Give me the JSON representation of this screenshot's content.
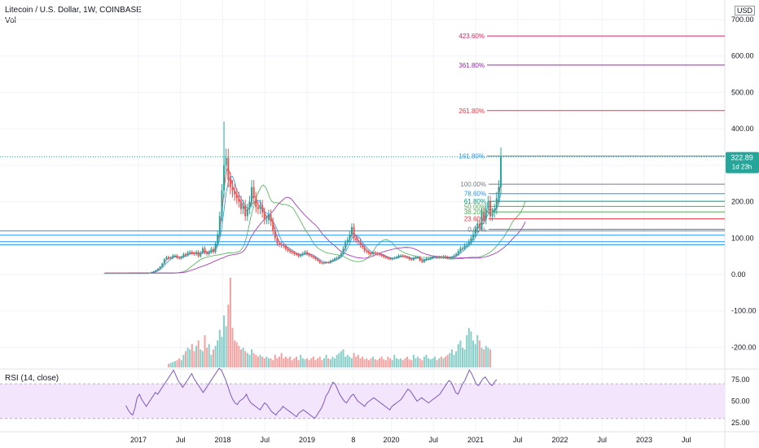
{
  "header": {
    "title": "Litecoin / U.S. Dollar, 1W, COINBASE",
    "vol_label": "Vol"
  },
  "rsi_label": "RSI (14, close)",
  "currency_label": "USD",
  "price_badge": {
    "value": "322.89",
    "countdown": "1d 23h",
    "color": "#26a69a"
  },
  "colors": {
    "up": "#26a69a",
    "down": "#ef5350",
    "rsi": "#7e57c2",
    "rsi_band": "#f3e5fc",
    "hline": "#2196f3"
  },
  "chart_data": {
    "type": "candlestick",
    "price_axis": {
      "min": -200,
      "max": 700,
      "ticks": [
        700,
        600,
        500,
        400,
        300,
        200,
        100,
        0,
        -100,
        -200
      ],
      "tick_labels": [
        "700.00",
        "600.00",
        "500.00",
        "400.00",
        "300.00",
        "200.00",
        "100.00",
        "0.00",
        "-100.00",
        "-200.00"
      ]
    },
    "rsi_axis": {
      "ticks": [
        75,
        50,
        25
      ],
      "tick_labels": [
        "75.00",
        "50.00",
        "25.00"
      ],
      "overbought": 70,
      "oversold": 30
    },
    "x_axis": {
      "labels": [
        "2017",
        "Jul",
        "2018",
        "Jul",
        "2019",
        "8",
        "2020",
        "Jul",
        "2021",
        "Jul",
        "2022",
        "Jul",
        "2023",
        "Jul"
      ]
    },
    "fib_levels": [
      {
        "label": "423.60%",
        "price": 655,
        "color": "#e91e63"
      },
      {
        "label": "361.80%",
        "price": 575,
        "color": "#9c27b0"
      },
      {
        "label": "261.80%",
        "price": 450,
        "color": "#f23645"
      },
      {
        "label": "161.80%",
        "price": 325,
        "color": "#2196f3"
      },
      {
        "label": "100.00%",
        "price": 248,
        "color": "#787b86"
      },
      {
        "label": "78.60%",
        "price": 222,
        "color": "#2196f3"
      },
      {
        "label": "61.80%",
        "price": 201,
        "color": "#089981"
      },
      {
        "label": "50.00%",
        "price": 187,
        "color": "#4caf50"
      },
      {
        "label": "38.20%",
        "price": 172,
        "color": "#4caf50"
      },
      {
        "label": "23.60%",
        "price": 153,
        "color": "#f23645"
      },
      {
        "label": "0.00%",
        "price": 124,
        "color": "#787b86"
      }
    ],
    "horizontal_lines": [
      120,
      108,
      90,
      82
    ],
    "weekly_close": [
      4,
      4,
      4,
      4,
      4,
      4,
      4,
      4,
      4,
      4,
      4,
      4,
      4,
      4,
      4,
      4,
      4,
      4,
      4,
      4,
      4,
      5,
      7,
      9,
      12,
      16,
      22,
      30,
      42,
      48,
      44,
      46,
      52,
      52,
      46,
      44,
      48,
      56,
      54,
      60,
      62,
      58,
      56,
      62,
      50,
      60,
      72,
      60,
      56,
      62,
      70,
      62,
      85,
      110,
      160,
      230,
      300,
      320,
      260,
      240,
      230,
      220,
      210,
      200,
      180,
      190,
      160,
      180,
      200,
      240,
      210,
      185,
      180,
      190,
      170,
      150,
      150,
      165,
      145,
      120,
      100,
      85,
      82,
      80,
      78,
      70,
      66,
      62,
      60,
      56,
      55,
      50,
      54,
      58,
      62,
      56,
      52,
      50,
      46,
      42,
      38,
      32,
      30,
      32,
      34,
      32,
      38,
      40,
      44,
      46,
      50,
      58,
      72,
      88,
      95,
      110,
      130,
      100,
      94,
      90,
      80,
      75,
      65,
      62,
      58,
      56,
      60,
      58,
      56,
      54,
      52,
      48,
      46,
      44,
      42,
      44,
      46,
      48,
      52,
      52,
      50,
      48,
      46,
      42,
      40,
      46,
      48,
      48,
      38,
      34,
      40,
      44,
      44,
      46,
      48,
      48,
      46,
      48,
      46,
      50,
      48,
      46,
      46,
      48,
      52,
      56,
      64,
      72,
      72,
      80,
      82,
      90,
      100,
      110,
      125,
      140,
      130,
      170,
      150,
      180,
      200,
      160,
      170,
      180,
      210,
      240,
      323
    ],
    "weekly_open_offset": [
      0.1
    ],
    "volume": [
      0,
      0,
      0,
      0,
      0,
      0,
      0,
      0,
      0,
      0,
      0,
      0,
      0,
      0,
      0,
      0,
      0,
      0,
      0,
      0,
      0,
      0,
      0,
      0,
      0,
      0,
      0,
      0,
      0,
      0,
      4,
      5,
      6,
      7,
      8,
      10,
      8,
      14,
      18,
      22,
      20,
      26,
      18,
      24,
      30,
      20,
      18,
      36,
      22,
      26,
      14,
      20,
      24,
      30,
      42,
      34,
      58,
      46,
      70,
      100,
      44,
      30,
      28,
      24,
      20,
      22,
      18,
      16,
      14,
      20,
      16,
      14,
      12,
      14,
      12,
      10,
      12,
      10,
      10,
      8,
      14,
      10,
      12,
      16,
      10,
      12,
      10,
      12,
      8,
      10,
      12,
      8,
      14,
      10,
      9,
      10,
      8,
      10,
      12,
      8,
      10,
      12,
      8,
      10,
      14,
      10,
      9,
      12,
      10,
      14,
      16,
      18,
      20,
      12,
      14,
      12,
      10,
      16,
      12,
      14,
      10,
      12,
      9,
      10,
      8,
      10,
      12,
      9,
      8,
      10,
      12,
      9,
      8,
      12,
      10,
      8,
      14,
      10,
      9,
      10,
      8,
      10,
      12,
      9,
      8,
      14,
      10,
      12,
      10,
      8,
      12,
      14,
      10,
      9,
      10,
      12,
      8,
      10,
      12,
      10,
      12,
      14,
      16,
      20,
      14,
      18,
      26,
      30,
      22,
      20,
      36,
      44,
      40,
      30,
      26,
      36,
      30,
      22,
      20,
      24,
      22,
      20
    ],
    "rsi": [
      45,
      40,
      36,
      34,
      42,
      54,
      58,
      52,
      48,
      44,
      48,
      52,
      56,
      60,
      58,
      62,
      66,
      70,
      74,
      78,
      82,
      86,
      80,
      74,
      70,
      66,
      70,
      74,
      78,
      82,
      76,
      72,
      68,
      64,
      60,
      64,
      68,
      72,
      76,
      80,
      84,
      88,
      86,
      80,
      74,
      66,
      58,
      52,
      48,
      46,
      50,
      52,
      54,
      58,
      52,
      48,
      46,
      44,
      42,
      40,
      44,
      48,
      46,
      42,
      38,
      36,
      34,
      38,
      40,
      44,
      42,
      40,
      38,
      36,
      34,
      32,
      36,
      38,
      40,
      38,
      36,
      34,
      32,
      30,
      34,
      38,
      42,
      48,
      56,
      60,
      66,
      72,
      70,
      64,
      58,
      54,
      50,
      48,
      52,
      56,
      58,
      54,
      50,
      48,
      46,
      44,
      48,
      50,
      52,
      54,
      52,
      50,
      48,
      46,
      44,
      42,
      40,
      44,
      46,
      48,
      50,
      52,
      56,
      60,
      64,
      62,
      58,
      54,
      50,
      52,
      54,
      52,
      50,
      48,
      50,
      52,
      54,
      56,
      58,
      62,
      66,
      70,
      74,
      72,
      66,
      60,
      58,
      64,
      70,
      74,
      80,
      86,
      82,
      76,
      70,
      68,
      72,
      76,
      78,
      74,
      70,
      68,
      72,
      75
    ]
  }
}
